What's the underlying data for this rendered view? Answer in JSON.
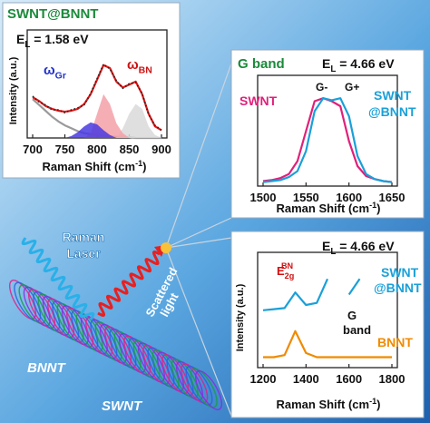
{
  "chart_data": [
    {
      "type": "line",
      "title": "SWNT@BNNT",
      "title_color": "#1a8a3a",
      "excitation": {
        "text": "E",
        "sub": "L",
        "tail": " = 1.58 eV"
      },
      "x_label": {
        "text": "Raman Shift (cm",
        "sup": "-1",
        "tail": ")"
      },
      "y_label": "Intensity (a.u.)",
      "xlim": [
        700,
        900
      ],
      "xticks": [
        700,
        750,
        800,
        850,
        900
      ],
      "ylim": [
        0,
        1
      ],
      "x": [
        700,
        710,
        720,
        730,
        740,
        750,
        760,
        770,
        780,
        790,
        800,
        810,
        820,
        830,
        840,
        850,
        860,
        870,
        880,
        890,
        900
      ],
      "annotations": [
        {
          "text": "ω",
          "sub": "Gr",
          "color": "#2233cc"
        },
        {
          "text": "ω",
          "sub": "BN",
          "color": "#d01010"
        }
      ],
      "series": [
        {
          "color": "#9a9a9a",
          "fill": false,
          "values": [
            0.4,
            0.34,
            0.28,
            0.22,
            0.17,
            0.13,
            0.1,
            0.07,
            0.05,
            0.04,
            0.03,
            0.02,
            0.02,
            0.01,
            0.01,
            0.01,
            0.0,
            0.0,
            0.0,
            0.0,
            0.0
          ]
        },
        {
          "color": "#d9d9d9",
          "fill": true,
          "values": [
            0,
            0,
            0,
            0,
            0,
            0,
            0,
            0,
            0,
            0,
            0,
            0,
            0,
            0,
            0.1,
            0.25,
            0.35,
            0.3,
            0.12,
            0.03,
            0
          ]
        },
        {
          "color": "#f4a0a8",
          "fill": true,
          "values": [
            0,
            0,
            0,
            0,
            0,
            0,
            0,
            0,
            0,
            0.05,
            0.25,
            0.45,
            0.35,
            0.15,
            0.05,
            0,
            0,
            0,
            0,
            0,
            0
          ]
        },
        {
          "color": "#4a3ae0",
          "fill": true,
          "values": [
            0,
            0,
            0,
            0,
            0,
            0,
            0.02,
            0.06,
            0.12,
            0.16,
            0.14,
            0.08,
            0.03,
            0,
            0,
            0,
            0,
            0,
            0,
            0,
            0
          ]
        },
        {
          "color": "#e01818",
          "fill": false,
          "values": [
            0.42,
            0.38,
            0.33,
            0.3,
            0.28,
            0.27,
            0.28,
            0.3,
            0.35,
            0.45,
            0.6,
            0.75,
            0.72,
            0.58,
            0.52,
            0.55,
            0.58,
            0.45,
            0.25,
            0.12,
            0.08
          ]
        },
        {
          "color": "#222222",
          "fill": false,
          "dotted": true,
          "values": [
            0.43,
            0.37,
            0.34,
            0.29,
            0.29,
            0.26,
            0.29,
            0.31,
            0.34,
            0.46,
            0.61,
            0.76,
            0.71,
            0.59,
            0.51,
            0.56,
            0.57,
            0.46,
            0.24,
            0.13,
            0.08
          ]
        }
      ]
    },
    {
      "type": "line",
      "title": "G band",
      "title_color": "#1a8a3a",
      "excitation": {
        "text": "E",
        "sub": "L",
        "tail": " = 4.66 eV"
      },
      "x_label": {
        "text": "Raman Shift (cm",
        "sup": "-1",
        "tail": ")"
      },
      "xlim": [
        1500,
        1650
      ],
      "xticks": [
        1500,
        1550,
        1600,
        1650
      ],
      "ylim": [
        0,
        1
      ],
      "x": [
        1500,
        1510,
        1520,
        1530,
        1540,
        1550,
        1560,
        1570,
        1580,
        1590,
        1600,
        1610,
        1620,
        1630,
        1640,
        1650
      ],
      "annotations": [
        {
          "text": "SWNT",
          "color": "#e0207a"
        },
        {
          "text": "G-",
          "color": "#111111"
        },
        {
          "text": "G+",
          "color": "#111111"
        },
        {
          "text": "SWNT",
          "color": "#1aa0d8"
        },
        {
          "text": "@BNNT",
          "color": "#1aa0d8"
        }
      ],
      "series": [
        {
          "color": "#e0207a",
          "fill": false,
          "values": [
            0.05,
            0.06,
            0.08,
            0.12,
            0.25,
            0.55,
            0.85,
            0.88,
            0.85,
            0.8,
            0.45,
            0.2,
            0.1,
            0.07,
            0.05,
            0.04
          ]
        },
        {
          "color": "#1aa0d8",
          "fill": false,
          "values": [
            0.04,
            0.05,
            0.06,
            0.09,
            0.15,
            0.35,
            0.75,
            0.88,
            0.86,
            0.88,
            0.7,
            0.3,
            0.12,
            0.07,
            0.05,
            0.04
          ]
        }
      ]
    },
    {
      "type": "line",
      "excitation": {
        "text": "E",
        "sub": "L",
        "tail": " = 4.66 eV"
      },
      "x_label": {
        "text": "Raman Shift (cm",
        "sup": "-1",
        "tail": ")"
      },
      "y_label": "Intensity (a.u.)",
      "xlim": [
        1200,
        1800
      ],
      "xticks": [
        1200,
        1400,
        1600,
        1800
      ],
      "ylim": [
        0,
        1
      ],
      "x": [
        1200,
        1250,
        1300,
        1350,
        1400,
        1450,
        1500,
        1550,
        1600,
        1650,
        1700,
        1750,
        1800
      ],
      "annotations": [
        {
          "text": "E",
          "sub": "2g",
          "sup": "BN",
          "color": "#d01010"
        },
        {
          "text": "SWNT",
          "color": "#1aa0d8"
        },
        {
          "text": "@BNNT",
          "color": "#1aa0d8"
        },
        {
          "text": "G",
          "color": "#111111"
        },
        {
          "text": "band",
          "color": "#111111"
        },
        {
          "text": "BNNT",
          "color": "#f08a00"
        }
      ],
      "series": [
        {
          "color": "#1aa0d8",
          "fill": false,
          "values": [
            0.55,
            0.56,
            0.57,
            0.72,
            0.6,
            0.62,
            0.85,
            null,
            0.7,
            0.85,
            null,
            null,
            null
          ]
        },
        {
          "color": "#f08a00",
          "fill": false,
          "values": [
            0.1,
            0.1,
            0.12,
            0.35,
            0.14,
            0.1,
            0.1,
            0.1,
            0.1,
            0.1,
            0.1,
            0.1,
            0.1
          ]
        }
      ]
    }
  ],
  "illustration": {
    "laser_label": [
      "Raman",
      "Laser"
    ],
    "scattered_label": [
      "Scattered",
      "light"
    ],
    "bnnt_label": "BNNT",
    "swnt_label": "SWNT"
  }
}
